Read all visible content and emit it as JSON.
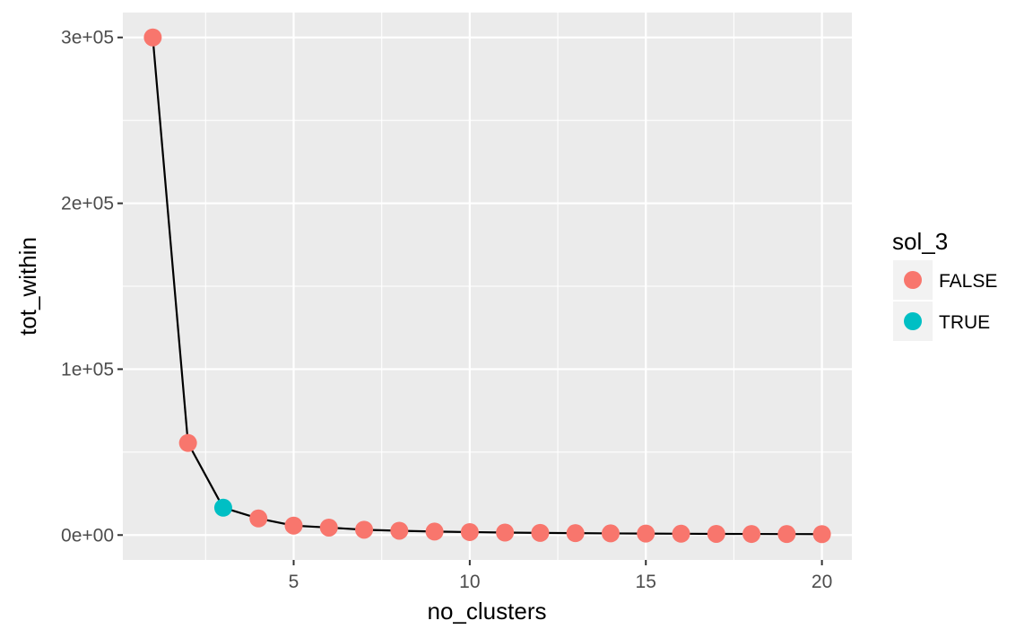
{
  "chart_data": {
    "type": "line",
    "xlabel": "no_clusters",
    "ylabel": "tot_within",
    "x": [
      1,
      2,
      3,
      4,
      5,
      6,
      7,
      8,
      9,
      10,
      11,
      12,
      13,
      14,
      15,
      16,
      17,
      18,
      19,
      20
    ],
    "y": [
      300000,
      55500,
      16500,
      10000,
      5700,
      4500,
      3200,
      2600,
      2100,
      1800,
      1500,
      1300,
      1150,
      1000,
      900,
      800,
      700,
      650,
      600,
      550
    ],
    "sol_3": [
      "FALSE",
      "FALSE",
      "TRUE",
      "FALSE",
      "FALSE",
      "FALSE",
      "FALSE",
      "FALSE",
      "FALSE",
      "FALSE",
      "FALSE",
      "FALSE",
      "FALSE",
      "FALSE",
      "FALSE",
      "FALSE",
      "FALSE",
      "FALSE",
      "FALSE",
      "FALSE"
    ],
    "xlim": [
      0.15,
      20.85
    ],
    "ylim": [
      -15000,
      315000
    ],
    "x_ticks": [
      5,
      10,
      15,
      20
    ],
    "x_tick_labels": [
      "5",
      "10",
      "15",
      "20"
    ],
    "y_ticks": [
      0,
      100000,
      200000,
      300000
    ],
    "y_tick_labels": [
      "0e+00",
      "1e+05",
      "2e+05",
      "3e+05"
    ],
    "grid": true,
    "legend": {
      "title": "sol_3",
      "position": "right",
      "entries": [
        {
          "label": "FALSE",
          "color": "#f8766d"
        },
        {
          "label": "TRUE",
          "color": "#00bfc4"
        }
      ]
    },
    "colors": {
      "panel_background": "#ebebeb",
      "grid": "#ffffff",
      "line": "#000000",
      "tick_text": "#4d4d4d",
      "legend_key_background": "#f2f2f2"
    }
  }
}
